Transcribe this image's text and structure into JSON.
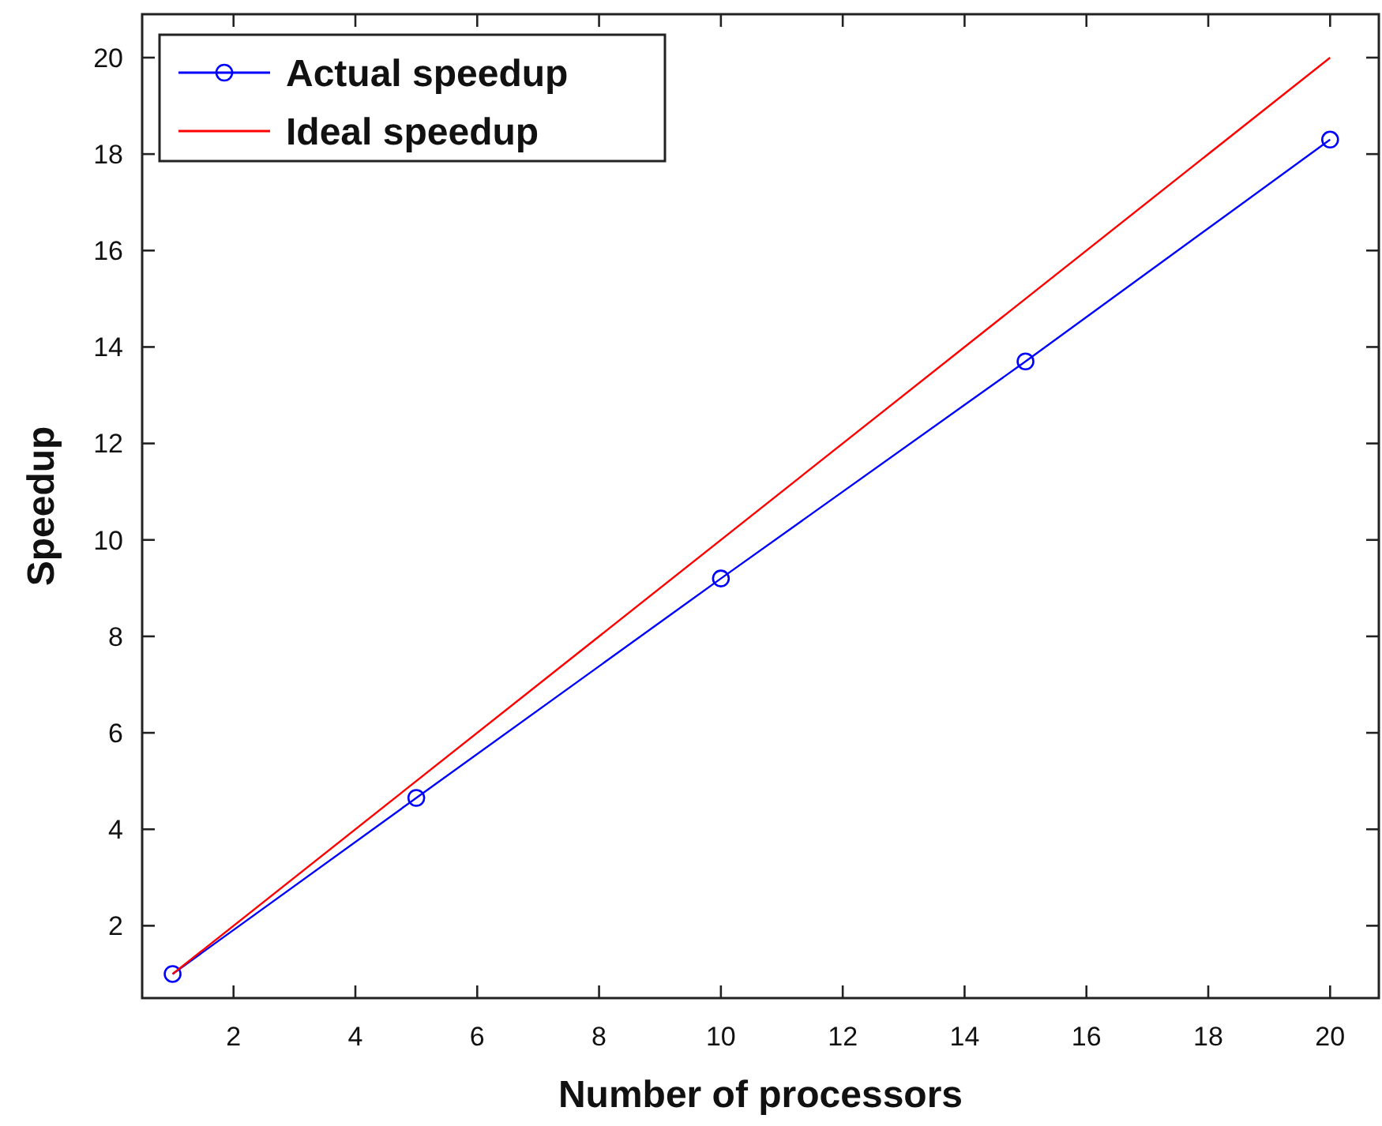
{
  "chart_data": {
    "type": "line",
    "xlabel": "Number of processors",
    "ylabel": "Speedup",
    "xlim": [
      0.5,
      20.8
    ],
    "ylim": [
      0.5,
      20.9
    ],
    "xticks": [
      2,
      4,
      6,
      8,
      10,
      12,
      14,
      16,
      18,
      20
    ],
    "yticks": [
      2,
      4,
      6,
      8,
      10,
      12,
      14,
      16,
      18,
      20
    ],
    "grid": false,
    "legend": "top left",
    "series": [
      {
        "name": "Actual speedup",
        "color": "#0000ff",
        "x": [
          1,
          5,
          10,
          15,
          20
        ],
        "values": [
          1,
          4.65,
          9.2,
          13.7,
          18.3
        ],
        "marker": "circle"
      },
      {
        "name": "Ideal speedup",
        "color": "#ff0000",
        "x": [
          1,
          20
        ],
        "values": [
          1,
          20
        ],
        "marker": "none"
      }
    ]
  }
}
